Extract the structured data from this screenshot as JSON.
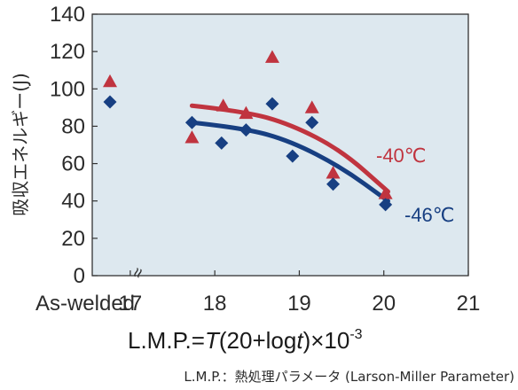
{
  "chart_data": {
    "type": "scatter",
    "ylabel": "吸収エネルギー(J)",
    "xlabel": {
      "prefix": "L.M.P.=",
      "T": "T",
      "mid": "(20+log",
      "t": "t",
      "suffix": ")×10",
      "exp": "-3"
    },
    "note": "L.M.P.：熱処理パラメータ (Larson-Miller Parameter)",
    "ylim": [
      0,
      140
    ],
    "yticks": [
      "0",
      "20",
      "40",
      "60",
      "80",
      "100",
      "120",
      "140"
    ],
    "xlim": [
      16.55,
      21
    ],
    "xticks": [
      {
        "value": 17,
        "label": "17"
      },
      {
        "value": 18,
        "label": "18"
      },
      {
        "value": 19,
        "label": "19"
      },
      {
        "value": 20,
        "label": "20"
      },
      {
        "value": 21,
        "label": "21"
      }
    ],
    "as_welded_label": "As-welded",
    "axis_break": "≈",
    "grid": false,
    "colors": {
      "background": "#dde8ef",
      "red": "#c0343f",
      "blue": "#173f82"
    },
    "series": [
      {
        "name": "-40℃",
        "marker": "triangle",
        "color": "#c0343f",
        "as_welded": 104,
        "points": [
          [
            17.73,
            74
          ],
          [
            18.1,
            91
          ],
          [
            18.37,
            87
          ],
          [
            18.68,
            117
          ],
          [
            19.15,
            90
          ],
          [
            19.4,
            55
          ],
          [
            20.02,
            44
          ]
        ],
        "trend": [
          [
            17.73,
            91
          ],
          [
            18.35,
            88
          ],
          [
            18.9,
            81
          ],
          [
            19.5,
            67
          ],
          [
            20.05,
            45
          ]
        ]
      },
      {
        "name": "-46℃",
        "marker": "diamond",
        "color": "#173f82",
        "as_welded": 93,
        "points": [
          [
            17.73,
            82
          ],
          [
            18.08,
            71
          ],
          [
            18.37,
            78
          ],
          [
            18.68,
            92
          ],
          [
            18.92,
            64
          ],
          [
            19.15,
            82
          ],
          [
            19.4,
            49
          ],
          [
            20.02,
            38
          ]
        ],
        "trend": [
          [
            17.73,
            82
          ],
          [
            18.35,
            79
          ],
          [
            18.9,
            72
          ],
          [
            19.5,
            58
          ],
          [
            20.05,
            40
          ]
        ]
      }
    ]
  }
}
